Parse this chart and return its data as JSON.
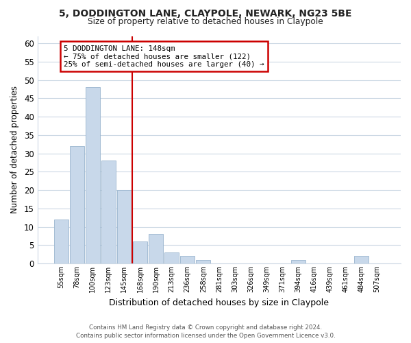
{
  "title_line1": "5, DODDINGTON LANE, CLAYPOLE, NEWARK, NG23 5BE",
  "title_line2": "Size of property relative to detached houses in Claypole",
  "bar_labels": [
    "55sqm",
    "78sqm",
    "100sqm",
    "123sqm",
    "145sqm",
    "168sqm",
    "190sqm",
    "213sqm",
    "236sqm",
    "258sqm",
    "281sqm",
    "303sqm",
    "326sqm",
    "349sqm",
    "371sqm",
    "394sqm",
    "416sqm",
    "439sqm",
    "461sqm",
    "484sqm",
    "507sqm"
  ],
  "bar_values": [
    12,
    32,
    48,
    28,
    20,
    6,
    8,
    3,
    2,
    1,
    0,
    0,
    0,
    0,
    0,
    1,
    0,
    0,
    0,
    2,
    0
  ],
  "bar_color": "#c8d8ea",
  "bar_edge_color": "#9ab5ce",
  "property_line_color": "#cc0000",
  "annotation_text": "5 DODDINGTON LANE: 148sqm\n← 75% of detached houses are smaller (122)\n25% of semi-detached houses are larger (40) →",
  "annotation_box_color": "#ffffff",
  "annotation_box_edge": "#cc0000",
  "xlabel": "Distribution of detached houses by size in Claypole",
  "ylabel": "Number of detached properties",
  "ylim": [
    0,
    62
  ],
  "yticks": [
    0,
    5,
    10,
    15,
    20,
    25,
    30,
    35,
    40,
    45,
    50,
    55,
    60
  ],
  "grid_color": "#ccd8e4",
  "background_color": "#ffffff",
  "footer_line1": "Contains HM Land Registry data © Crown copyright and database right 2024.",
  "footer_line2": "Contains public sector information licensed under the Open Government Licence v3.0."
}
